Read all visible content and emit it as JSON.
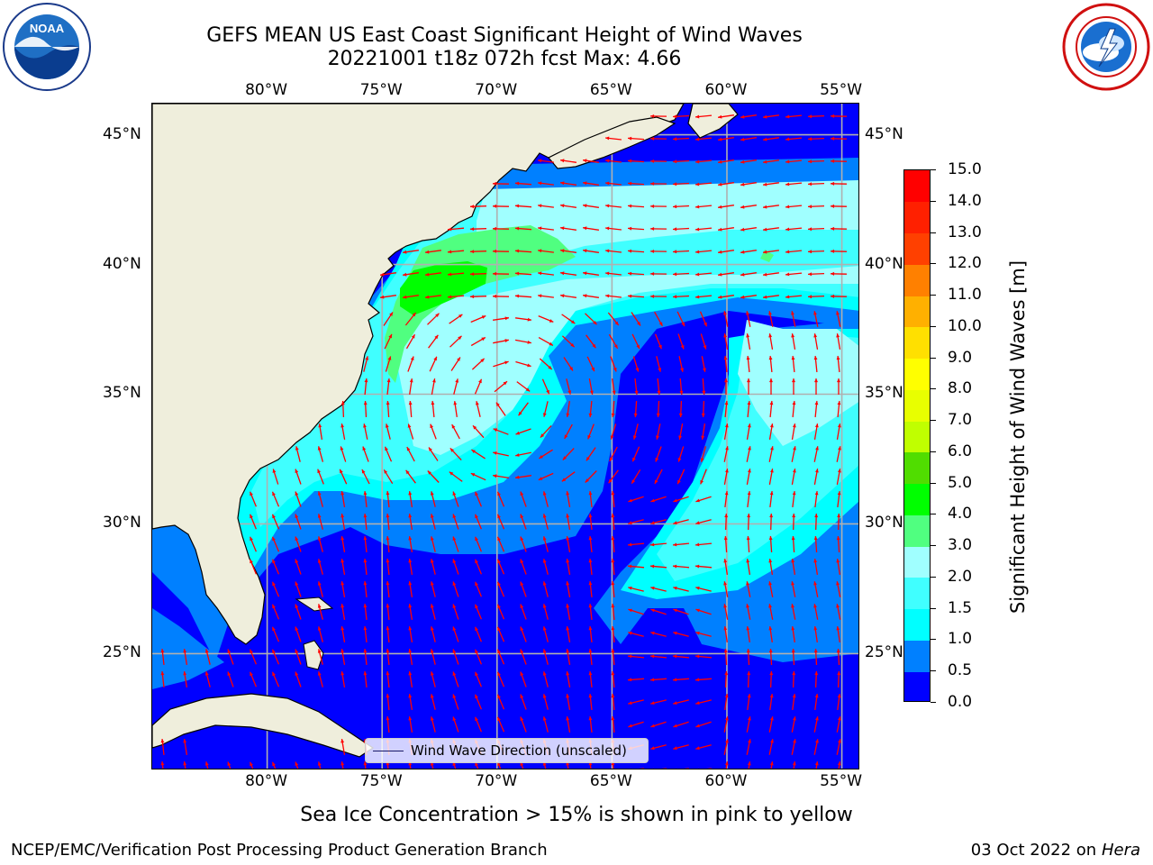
{
  "title": {
    "line1": "GEFS MEAN US East Coast Significant Height of Wind Waves",
    "line2": "20221001 t18z 072h fcst   Max: 4.66"
  },
  "colors": {
    "land": "#efeedc",
    "coastline": "#000000",
    "grid": "#b0b0b0",
    "arrow": "#ff0000"
  },
  "logos": {
    "noaa_text": "NOAA",
    "nws_icon": "nws-logo-icon"
  },
  "map": {
    "lon_range": [
      -85,
      -54.2
    ],
    "lat_range": [
      20.5,
      46.2
    ],
    "lon_ticks": [
      "80°W",
      "75°W",
      "70°W",
      "65°W",
      "60°W",
      "55°W"
    ],
    "lat_ticks": [
      "45°N",
      "40°N",
      "35°N",
      "30°N",
      "25°N"
    ],
    "grid": true
  },
  "legend": {
    "label": "Wind Wave Direction (unscaled)",
    "placement": "lower center"
  },
  "colorbar": {
    "label": "Significant Height of Wind Waves [m]",
    "ticks": [
      "0.0",
      "0.5",
      "1.0",
      "1.5",
      "2.0",
      "3.0",
      "4.0",
      "5.0",
      "6.0",
      "7.0",
      "8.0",
      "9.0",
      "10.0",
      "11.0",
      "12.0",
      "13.0",
      "14.0",
      "15.0"
    ],
    "colors": [
      "#0000ff",
      "#0080ff",
      "#00ffff",
      "#40ffff",
      "#a0ffff",
      "#50ff80",
      "#00ff00",
      "#50dd00",
      "#c0ff00",
      "#e8ff00",
      "#ffff00",
      "#ffe000",
      "#ffb000",
      "#ff8000",
      "#ff4000",
      "#ff2000",
      "#ff0000"
    ]
  },
  "footer": {
    "note": "Sea Ice Concentration > 15% is shown in pink to yellow",
    "left": "NCEP/EMC/Verification Post Processing Product Generation Branch",
    "right_date": "03 Oct 2022 on",
    "right_host": "Hera"
  }
}
